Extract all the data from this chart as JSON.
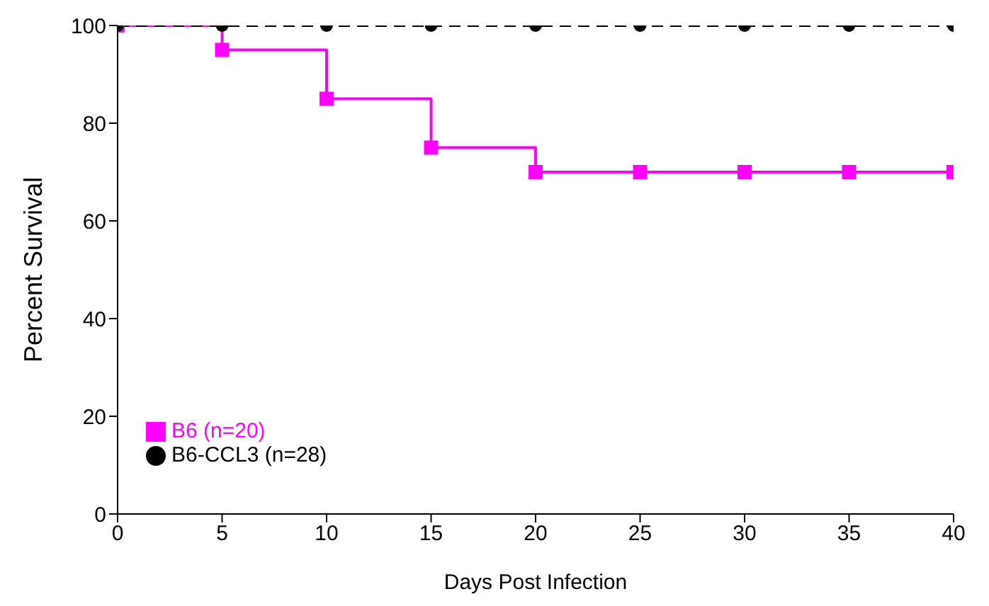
{
  "chart_data": {
    "type": "step",
    "xlabel": "Days Post Infection",
    "ylabel": "Percent Survival",
    "x": [
      0,
      5,
      10,
      15,
      20,
      25,
      30,
      35,
      40
    ],
    "series": [
      {
        "name": "B6 (n=20)",
        "color": "#ff00ff",
        "marker": "square",
        "line_style": "solid",
        "values": [
          100,
          95,
          85,
          75,
          70,
          70,
          70,
          70,
          70
        ]
      },
      {
        "name": "B6-CCL3 (n=28)",
        "color": "#000000",
        "marker": "circle",
        "line_style": "dashed",
        "values": [
          100,
          100,
          100,
          100,
          100,
          100,
          100,
          100,
          100
        ]
      }
    ],
    "xlim": [
      0,
      40
    ],
    "xticks": [
      0,
      5,
      10,
      15,
      20,
      25,
      30,
      35,
      40
    ],
    "ylim": [
      0,
      100
    ],
    "yticks": [
      0,
      20,
      40,
      60,
      80,
      100
    ],
    "grid": false,
    "legend": "bottom left"
  }
}
